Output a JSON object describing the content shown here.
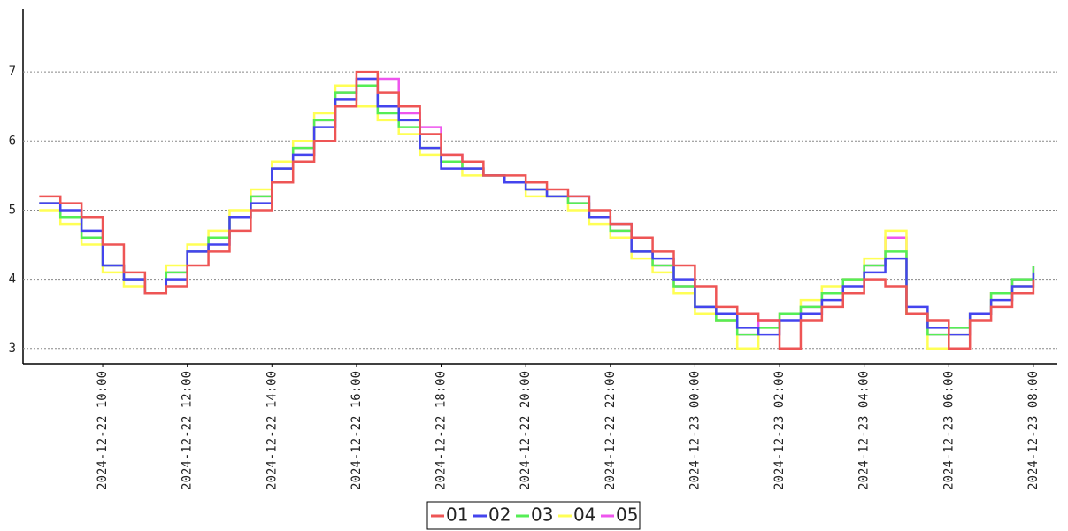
{
  "chart_data": {
    "type": "step-line",
    "x": [
      "2024-12-22 08:30",
      "2024-12-22 09:00",
      "2024-12-22 09:30",
      "2024-12-22 10:00",
      "2024-12-22 10:30",
      "2024-12-22 11:00",
      "2024-12-22 11:30",
      "2024-12-22 12:00",
      "2024-12-22 12:30",
      "2024-12-22 13:00",
      "2024-12-22 13:30",
      "2024-12-22 14:00",
      "2024-12-22 14:30",
      "2024-12-22 15:00",
      "2024-12-22 15:30",
      "2024-12-22 16:00",
      "2024-12-22 16:30",
      "2024-12-22 17:00",
      "2024-12-22 17:30",
      "2024-12-22 18:00",
      "2024-12-22 18:30",
      "2024-12-22 19:00",
      "2024-12-22 19:30",
      "2024-12-22 20:00",
      "2024-12-22 20:30",
      "2024-12-22 21:00",
      "2024-12-22 21:30",
      "2024-12-22 22:00",
      "2024-12-22 22:30",
      "2024-12-22 23:00",
      "2024-12-22 23:30",
      "2024-12-23 00:00",
      "2024-12-23 00:30",
      "2024-12-23 01:00",
      "2024-12-23 01:30",
      "2024-12-23 02:00",
      "2024-12-23 02:30",
      "2024-12-23 03:00",
      "2024-12-23 03:30",
      "2024-12-23 04:00",
      "2024-12-23 04:30",
      "2024-12-23 05:00",
      "2024-12-23 05:30",
      "2024-12-23 06:00",
      "2024-12-23 06:30",
      "2024-12-23 07:00",
      "2024-12-23 07:30",
      "2024-12-23 08:00"
    ],
    "series": [
      {
        "name": "01",
        "color": "#ee5555",
        "values": [
          5.2,
          5.1,
          4.9,
          4.5,
          4.1,
          3.8,
          3.9,
          4.2,
          4.4,
          4.7,
          5.0,
          5.4,
          5.7,
          6.0,
          6.5,
          7.0,
          6.7,
          6.5,
          6.1,
          5.8,
          5.7,
          5.5,
          5.5,
          5.4,
          5.3,
          5.2,
          5.0,
          4.8,
          4.6,
          4.4,
          4.2,
          3.9,
          3.6,
          3.5,
          3.4,
          3.0,
          3.4,
          3.6,
          3.8,
          4.0,
          3.9,
          3.5,
          3.4,
          3.0,
          3.4,
          3.6,
          3.8,
          4.0
        ]
      },
      {
        "name": "02",
        "color": "#4444ee",
        "values": [
          5.1,
          5.0,
          4.7,
          4.2,
          4.0,
          3.8,
          4.0,
          4.4,
          4.5,
          4.9,
          5.1,
          5.6,
          5.8,
          6.2,
          6.6,
          6.9,
          6.5,
          6.3,
          5.9,
          5.6,
          5.6,
          5.5,
          5.4,
          5.3,
          5.2,
          5.2,
          4.9,
          4.8,
          4.4,
          4.3,
          4.0,
          3.6,
          3.5,
          3.3,
          3.2,
          3.4,
          3.5,
          3.7,
          3.9,
          4.1,
          4.3,
          3.6,
          3.3,
          3.2,
          3.5,
          3.7,
          3.9,
          4.1
        ]
      },
      {
        "name": "03",
        "color": "#55ee55",
        "values": [
          5.1,
          4.9,
          4.6,
          4.2,
          4.0,
          3.8,
          4.1,
          4.4,
          4.6,
          4.9,
          5.2,
          5.6,
          5.9,
          6.3,
          6.7,
          6.8,
          6.4,
          6.2,
          5.9,
          5.7,
          5.6,
          5.5,
          5.4,
          5.3,
          5.2,
          5.1,
          4.9,
          4.7,
          4.4,
          4.2,
          3.9,
          3.6,
          3.4,
          3.2,
          3.3,
          3.5,
          3.6,
          3.8,
          4.0,
          4.2,
          4.4,
          3.5,
          3.2,
          3.3,
          3.5,
          3.8,
          4.0,
          4.2
        ]
      },
      {
        "name": "04",
        "color": "#ffff55",
        "values": [
          5.0,
          4.8,
          4.5,
          4.1,
          3.9,
          3.8,
          4.2,
          4.5,
          4.7,
          5.0,
          5.3,
          5.7,
          6.0,
          6.4,
          6.8,
          6.5,
          6.3,
          6.1,
          5.8,
          5.7,
          5.5,
          5.5,
          5.4,
          5.2,
          5.2,
          5.0,
          4.8,
          4.6,
          4.3,
          4.1,
          3.8,
          3.5,
          3.4,
          3.0,
          3.3,
          3.5,
          3.7,
          3.9,
          4.0,
          4.3,
          4.7,
          3.5,
          3.0,
          3.2,
          3.5,
          3.8,
          3.9,
          4.1
        ]
      },
      {
        "name": "05",
        "color": "#ee55ee",
        "values": [
          5.1,
          4.9,
          4.6,
          4.2,
          4.0,
          3.8,
          4.1,
          4.4,
          4.6,
          4.9,
          5.2,
          5.6,
          5.9,
          6.3,
          6.7,
          6.9,
          6.9,
          6.4,
          6.2,
          5.8,
          5.6,
          5.5,
          5.4,
          5.3,
          5.2,
          5.1,
          4.9,
          4.7,
          4.4,
          4.2,
          3.9,
          3.6,
          3.4,
          3.2,
          3.4,
          3.5,
          3.6,
          3.8,
          4.0,
          4.2,
          4.6,
          3.5,
          3.2,
          3.3,
          3.5,
          3.8,
          4.0,
          4.2
        ]
      }
    ],
    "xlim": [
      "2024-12-22 08:07",
      "2024-12-23 08:34"
    ],
    "xticks": [
      "2024-12-22 10:00",
      "2024-12-22 12:00",
      "2024-12-22 14:00",
      "2024-12-22 16:00",
      "2024-12-22 18:00",
      "2024-12-22 20:00",
      "2024-12-22 22:00",
      "2024-12-23 00:00",
      "2024-12-23 02:00",
      "2024-12-23 04:00",
      "2024-12-23 06:00",
      "2024-12-23 08:00"
    ],
    "ylim": [
      2.78,
      7.91
    ],
    "yticks": [
      3,
      4,
      5,
      6,
      7
    ],
    "grid": true,
    "legend": "bottom"
  }
}
